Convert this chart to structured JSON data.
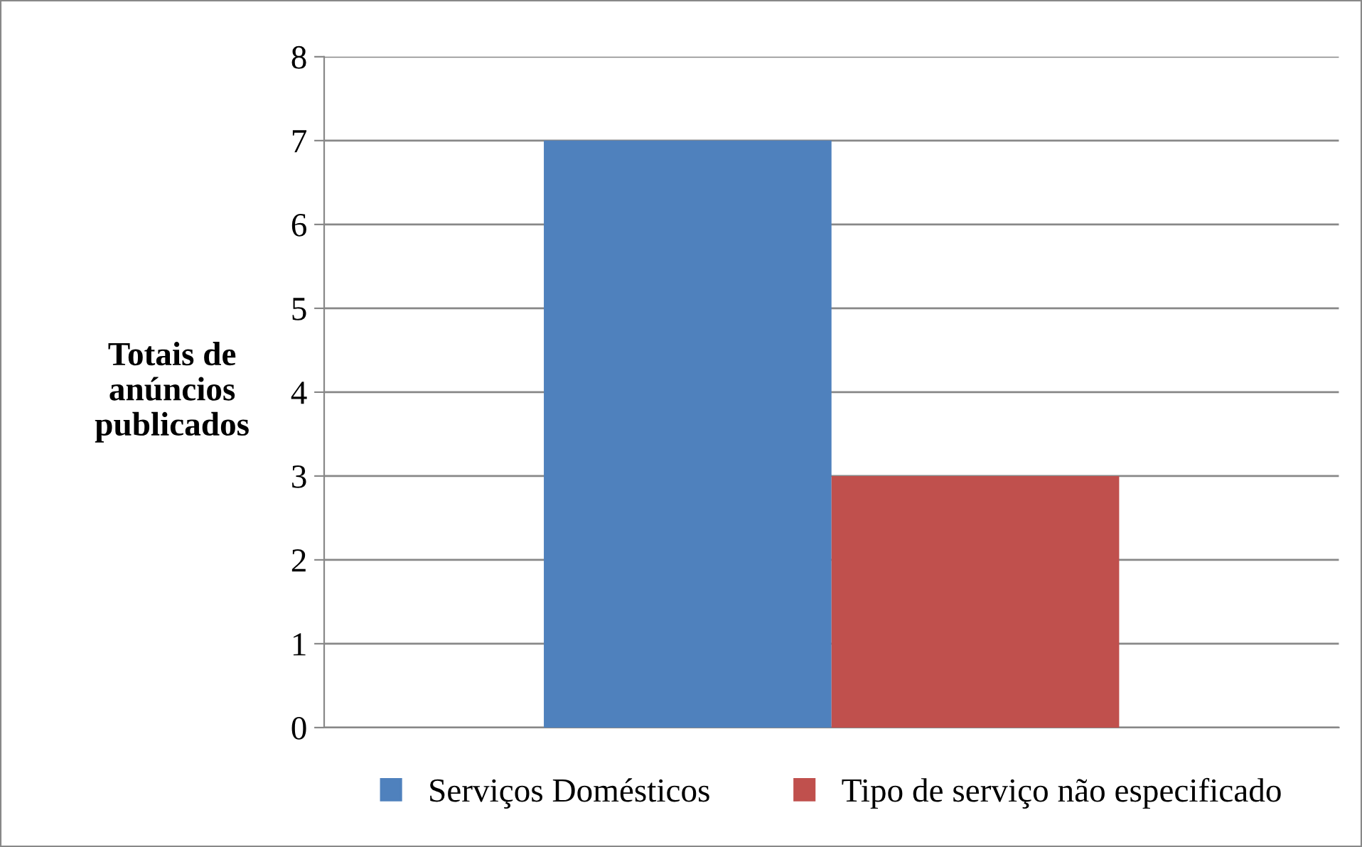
{
  "chart_data": {
    "type": "bar",
    "ylabel": "Totais de\nanúncios\npublicados",
    "categories": [
      null
    ],
    "series": [
      {
        "name": "Serviços Domésticos",
        "color": "#4f81bd",
        "values": [
          7
        ]
      },
      {
        "name": "Tipo de serviço não especificado",
        "color": "#c0504d",
        "values": [
          3
        ]
      }
    ],
    "ylim": [
      0,
      8
    ],
    "yticks": [
      0,
      1,
      2,
      3,
      4,
      5,
      6,
      7,
      8
    ],
    "grid": "y",
    "legend": "bottom"
  }
}
